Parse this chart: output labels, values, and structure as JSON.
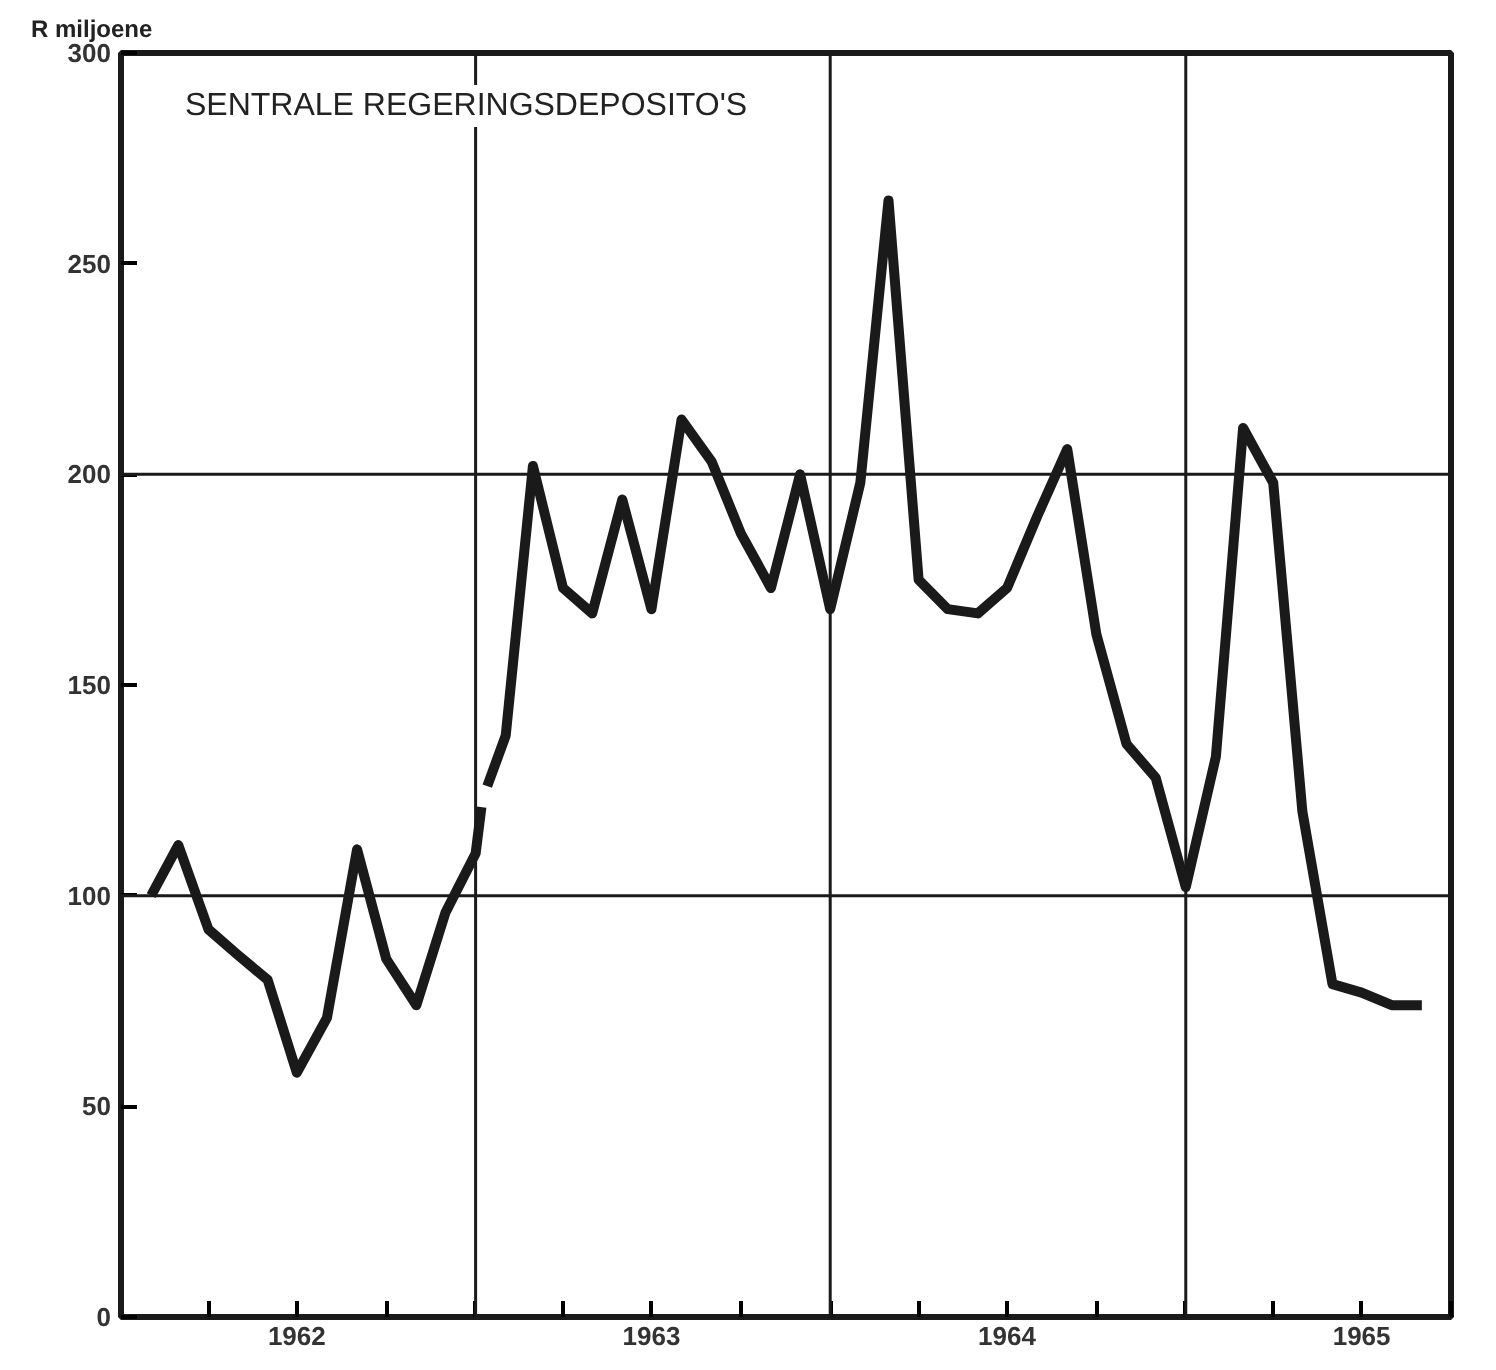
{
  "chart_data": {
    "type": "line",
    "title": "SENTRALE REGERINGSDEPOSITO'S",
    "ylabel": "R miljoene",
    "xlim": [
      "1962-01-01",
      "1965-10-01"
    ],
    "ylim": [
      0,
      300
    ],
    "xticks": [
      {
        "value": "1962-01-01",
        "label": null
      },
      {
        "value": "1962-04-01",
        "label": null
      },
      {
        "value": "1962-07-01",
        "label": "1962"
      },
      {
        "value": "1962-10-01",
        "label": null
      },
      {
        "value": "1963-01-01",
        "label": null
      },
      {
        "value": "1963-04-01",
        "label": null
      },
      {
        "value": "1963-07-01",
        "label": "1963"
      },
      {
        "value": "1963-10-01",
        "label": null
      },
      {
        "value": "1964-01-01",
        "label": null
      },
      {
        "value": "1964-04-01",
        "label": null
      },
      {
        "value": "1964-07-01",
        "label": "1964"
      },
      {
        "value": "1964-10-01",
        "label": null
      },
      {
        "value": "1965-01-01",
        "label": null
      },
      {
        "value": "1965-04-01",
        "label": null
      },
      {
        "value": "1965-07-01",
        "label": "1965"
      },
      {
        "value": "1965-10-01",
        "label": null
      }
    ],
    "yticks": [
      0,
      50,
      100,
      150,
      200,
      250,
      300
    ],
    "ref_lines": [
      {
        "axis": "x",
        "value": "1963-01-01"
      },
      {
        "axis": "x",
        "value": "1964-01-01"
      },
      {
        "axis": "x",
        "value": "1965-01-01"
      },
      {
        "axis": "y",
        "value": 100
      },
      {
        "axis": "y",
        "value": 200
      }
    ],
    "series": [
      {
        "color": "#1a1a1a",
        "x": [
          "1962-02-01",
          "1962-03-01",
          "1962-04-01",
          "1962-05-01",
          "1962-06-01",
          "1962-07-01",
          "1962-08-01",
          "1962-09-01",
          "1962-10-01",
          "1962-11-01",
          "1962-12-01",
          "1963-01-01",
          "1963-01-07",
          "1963-01-10",
          "1963-01-13",
          "1963-02-01",
          "1963-03-01",
          "1963-04-01",
          "1963-05-01",
          "1963-06-01",
          "1963-07-01",
          "1963-08-01",
          "1963-09-01",
          "1963-10-01",
          "1963-11-01",
          "1963-12-01",
          "1964-01-01",
          "1964-02-01",
          "1964-03-01",
          "1964-04-01",
          "1964-05-01",
          "1964-06-01",
          "1964-07-01",
          "1964-08-01",
          "1964-09-01",
          "1964-10-01",
          "1964-11-01",
          "1964-12-01",
          "1965-01-01",
          "1965-02-01",
          "1965-03-01",
          "1965-04-01",
          "1965-05-01",
          "1965-06-01",
          "1965-07-01",
          "1965-08-01",
          "1965-09-01"
        ],
        "values": [
          100,
          112,
          92,
          86,
          80,
          58,
          71,
          111,
          85,
          74,
          96,
          110,
          121,
          null,
          126,
          138,
          202,
          173,
          167,
          194,
          168,
          213,
          203,
          186,
          173,
          200,
          168,
          198,
          265,
          175,
          168,
          167,
          173,
          190,
          206,
          162,
          136,
          128,
          102,
          133,
          211,
          198,
          120,
          79,
          77,
          74,
          74
        ]
      }
    ],
    "grid": false,
    "marker": "none",
    "line_style": "solid"
  }
}
